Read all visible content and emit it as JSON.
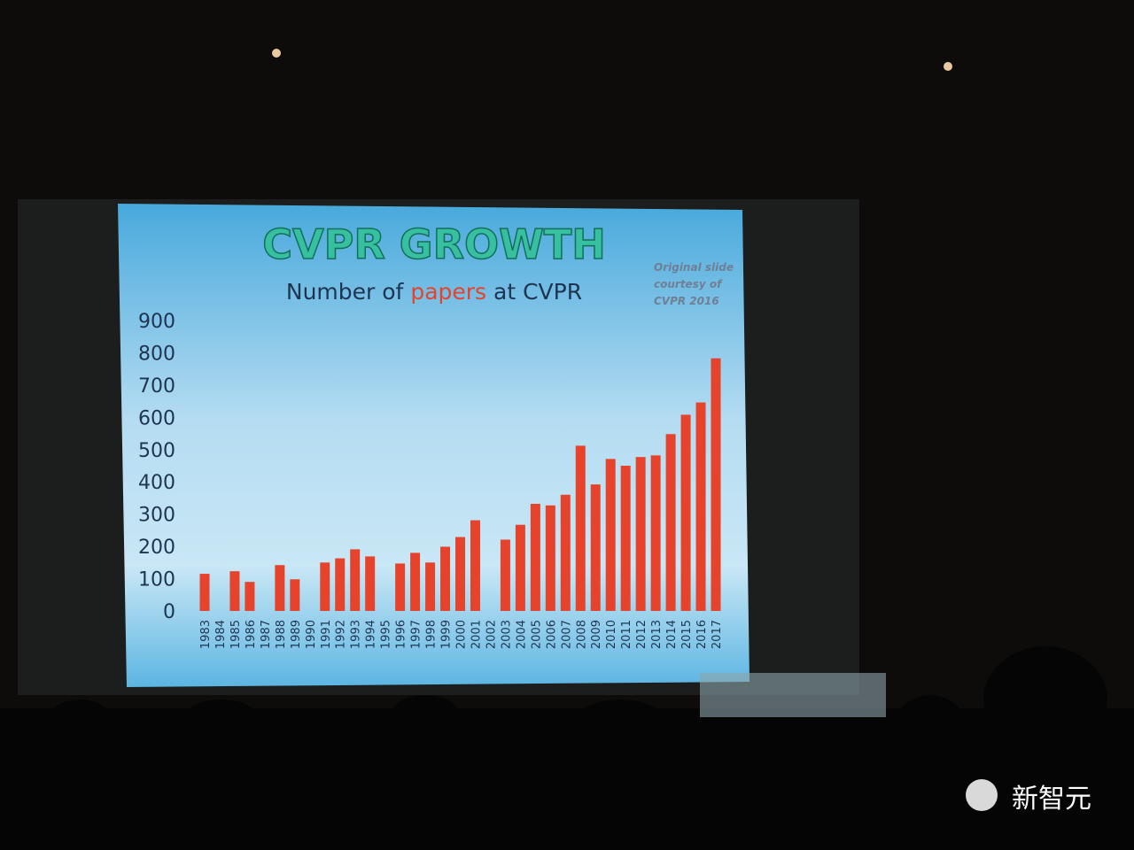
{
  "chart_data": {
    "type": "bar",
    "title": "CVPR GROWTH",
    "subtitle": [
      "Number of",
      "papers",
      "at CVPR"
    ],
    "note": [
      "Original slide",
      "courtesy of",
      "CVPR 2016"
    ],
    "categories": [
      "1983",
      "1984",
      "1985",
      "1986",
      "1987",
      "1988",
      "1989",
      "1990",
      "1991",
      "1992",
      "1993",
      "1994",
      "1995",
      "1996",
      "1997",
      "1998",
      "1999",
      "2000",
      "2001",
      "2002",
      "2003",
      "2004",
      "2005",
      "2006",
      "2007",
      "2008",
      "2009",
      "2010",
      "2011",
      "2012",
      "2013",
      "2014",
      "2015",
      "2016",
      "2017"
    ],
    "values": [
      115,
      null,
      123,
      90,
      null,
      142,
      98,
      null,
      150,
      163,
      191,
      169,
      null,
      147,
      180,
      150,
      199,
      229,
      281,
      null,
      221,
      267,
      332,
      327,
      360,
      512,
      392,
      471,
      450,
      477,
      482,
      548,
      608,
      646,
      783
    ],
    "color": "#e5432c",
    "ylim": [
      0,
      900
    ],
    "yticks": [
      0,
      100,
      200,
      300,
      400,
      500,
      600,
      700,
      800,
      900
    ]
  },
  "watermark": "新智元"
}
